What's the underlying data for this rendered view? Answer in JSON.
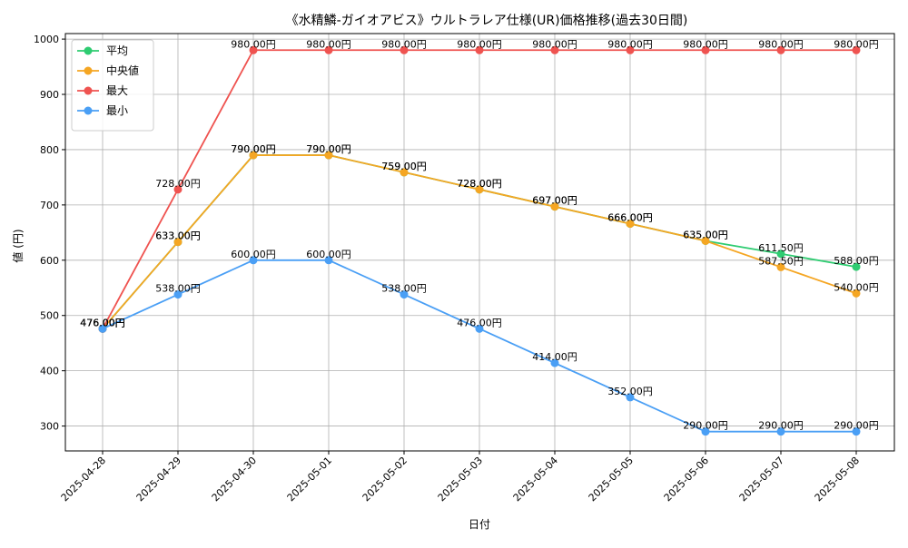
{
  "chart_data": {
    "type": "line",
    "title": "《水精鱗-ガイオアビス》ウルトラレア仕様(UR)価格推移(過去30日間)",
    "xlabel": "日付",
    "ylabel": "値 (円)",
    "categories": [
      "2025-04-28",
      "2025-04-29",
      "2025-04-30",
      "2025-05-01",
      "2025-05-02",
      "2025-05-03",
      "2025-05-04",
      "2025-05-05",
      "2025-05-06",
      "2025-05-07",
      "2025-05-08"
    ],
    "ylim": [
      255,
      1010
    ],
    "yticks": [
      300,
      400,
      500,
      600,
      700,
      800,
      900,
      1000
    ],
    "grid": true,
    "legend_position": "upper-left",
    "value_suffix": "円",
    "series": [
      {
        "name": "平均",
        "color": "#2ecc71",
        "values": [
          476,
          633,
          790,
          790,
          759,
          728,
          697,
          666,
          635,
          611.5,
          588
        ]
      },
      {
        "name": "中央値",
        "color": "#f5a623",
        "values": [
          476,
          633,
          790,
          790,
          759,
          728,
          697,
          666,
          635,
          587.5,
          540
        ]
      },
      {
        "name": "最大",
        "color": "#ef5350",
        "values": [
          476,
          728,
          980,
          980,
          980,
          980,
          980,
          980,
          980,
          980,
          980
        ]
      },
      {
        "name": "最小",
        "color": "#4a9ff5",
        "values": [
          476,
          538,
          600,
          600,
          538,
          476,
          414,
          352,
          290,
          290,
          290
        ]
      }
    ]
  }
}
